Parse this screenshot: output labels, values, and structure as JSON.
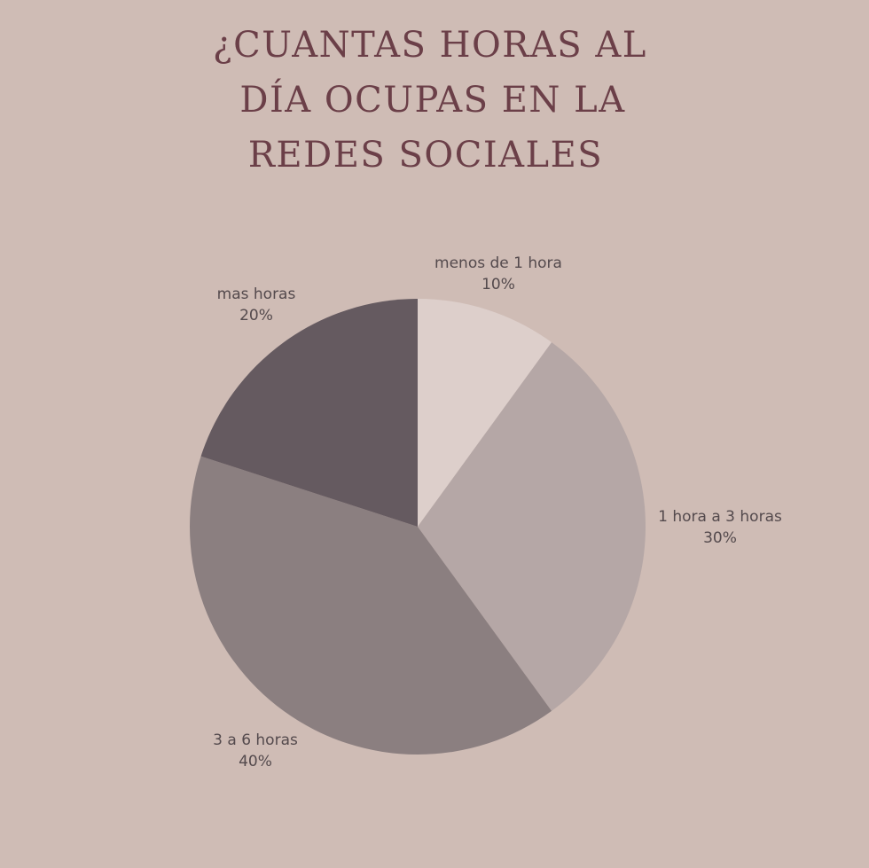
{
  "chart_data": {
    "type": "pie",
    "title_lines": [
      "¿CUANTAS HORAS AL",
      "DÍA OCUPAS EN LA",
      "REDES SOCIALES"
    ],
    "slices": [
      {
        "label": "menos de 1 hora",
        "value": 10,
        "value_text": "10%",
        "color": "#ddcfcb"
      },
      {
        "label": "1 hora a 3 horas",
        "value": 30,
        "value_text": "30%",
        "color": "#b5a7a6"
      },
      {
        "label": "3 a 6 horas",
        "value": 40,
        "value_text": "40%",
        "color": "#8b7f80"
      },
      {
        "label": "mas horas",
        "value": 20,
        "value_text": "20%",
        "color": "#655a60"
      }
    ],
    "start": "top",
    "direction": "clockwise",
    "legend": "none"
  }
}
